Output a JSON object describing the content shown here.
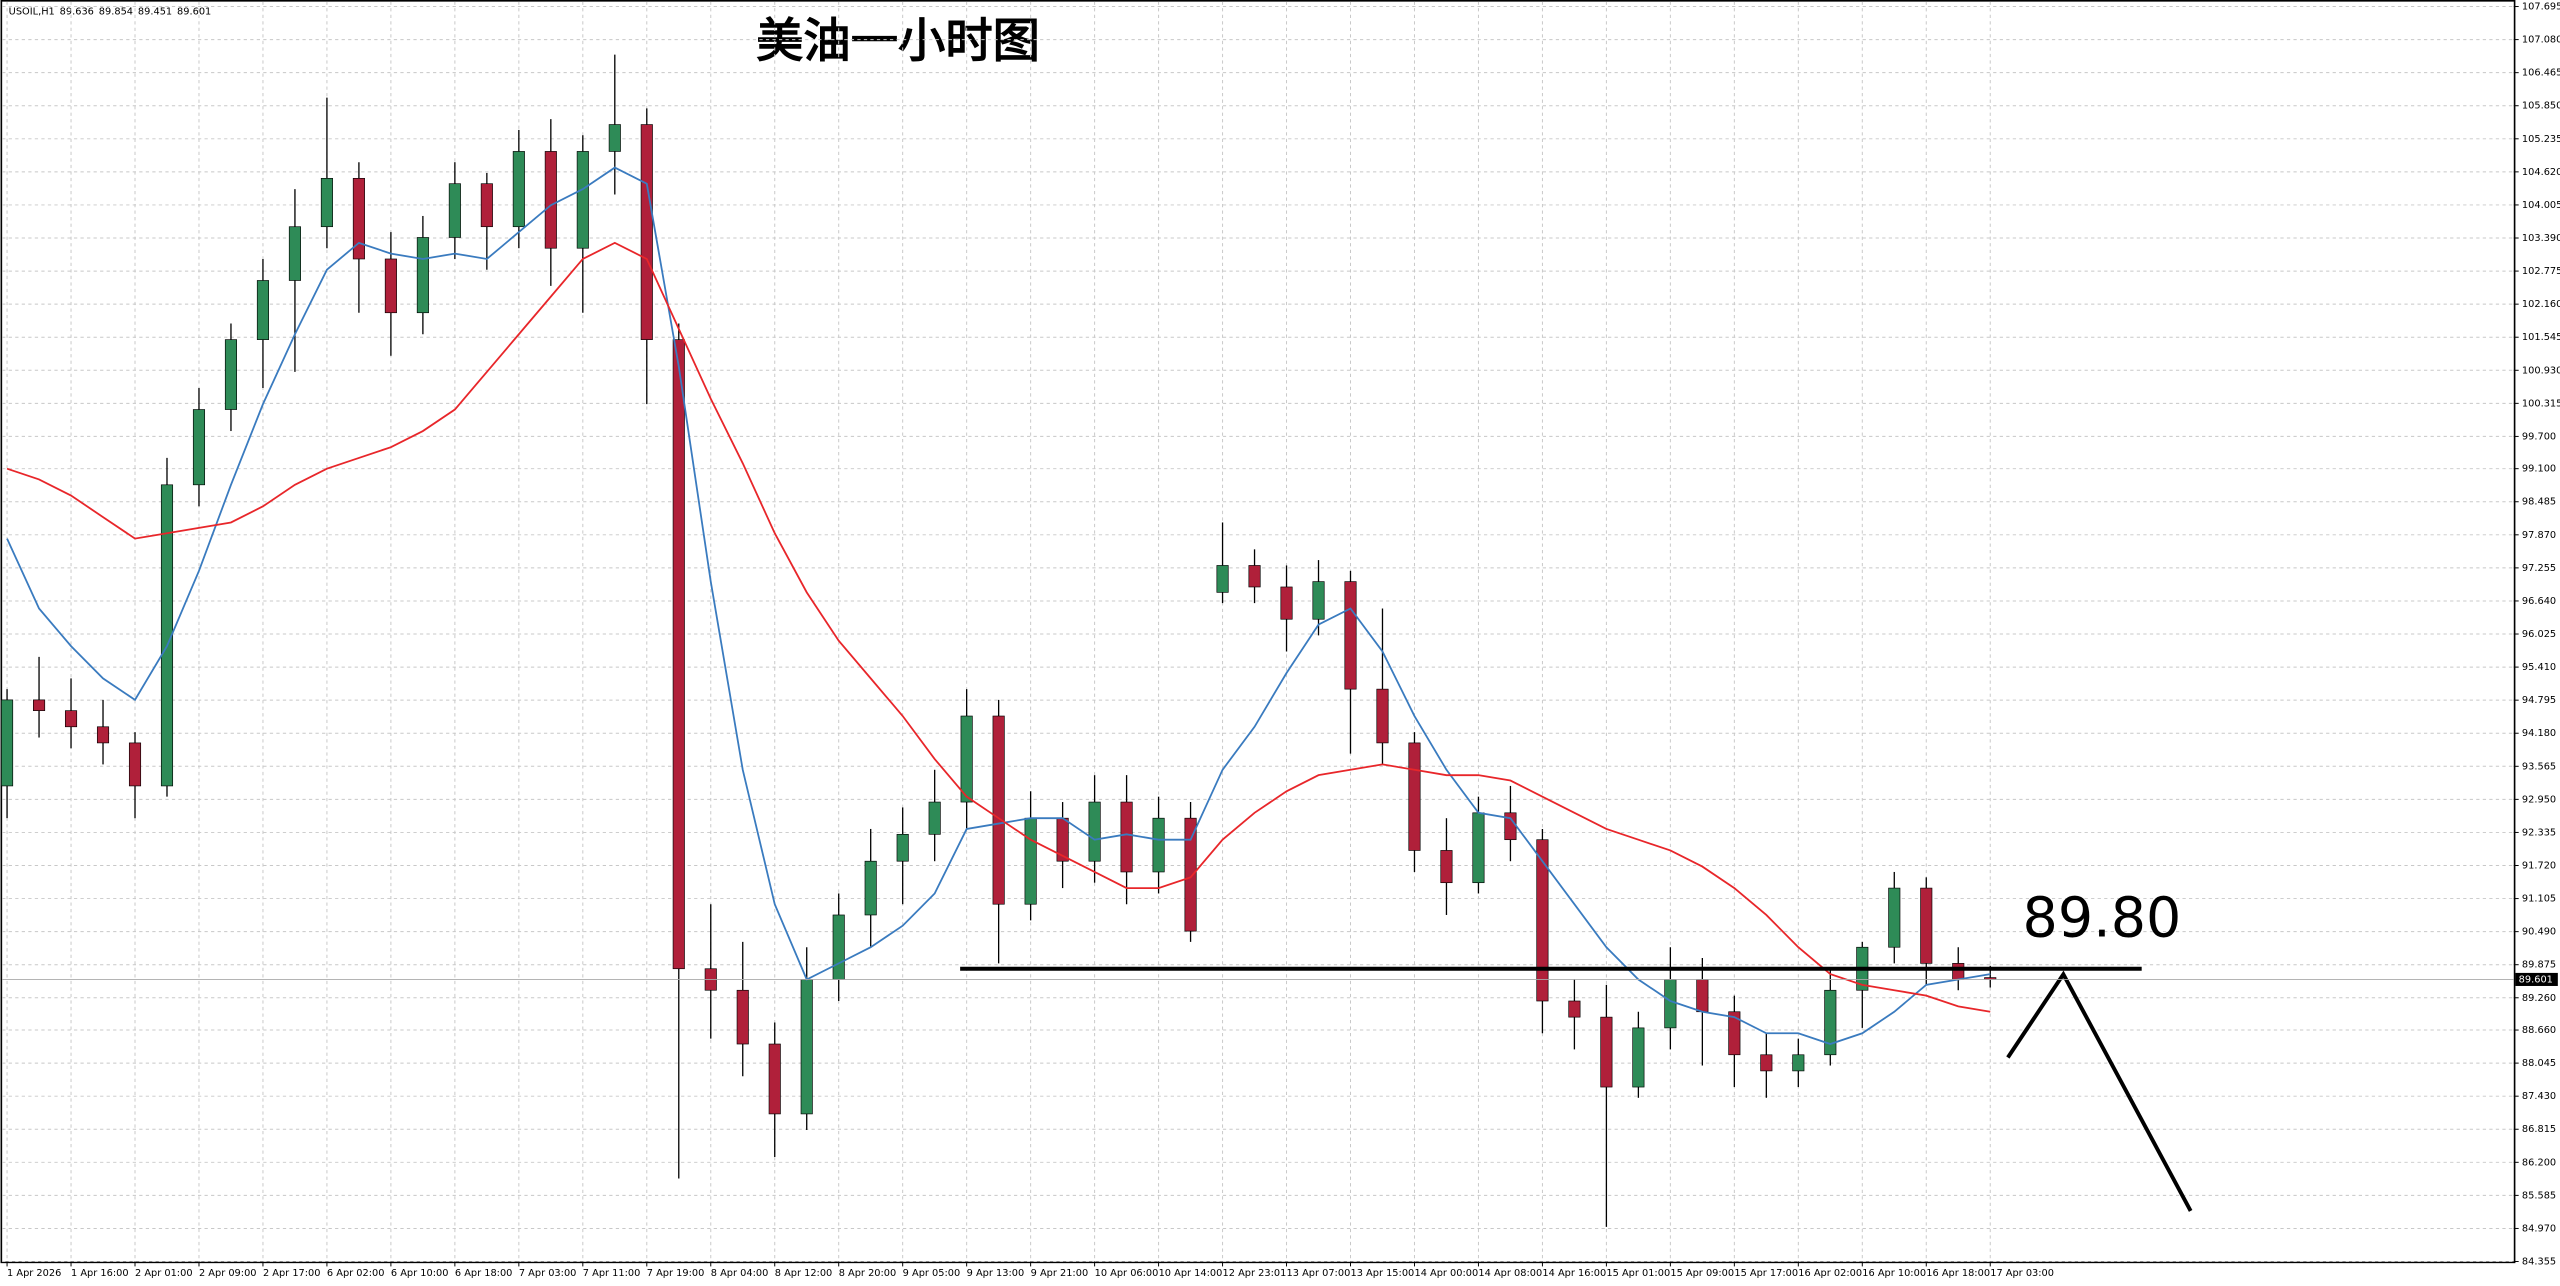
{
  "chart_data": {
    "type": "candlestick",
    "header": "USOIL,H1",
    "header_values": [
      89.636,
      89.854,
      89.451,
      89.601
    ],
    "title": "美油一小时图",
    "categories": [
      "1 Apr 2026",
      null,
      "1 Apr 16:00",
      null,
      "2 Apr 01:00",
      null,
      "2 Apr 09:00",
      null,
      "2 Apr 17:00",
      null,
      "6 Apr 02:00",
      null,
      "6 Apr 10:00",
      null,
      "6 Apr 18:00",
      null,
      "7 Apr 03:00",
      null,
      "7 Apr 11:00",
      null,
      "7 Apr 19:00",
      null,
      "8 Apr 04:00",
      null,
      "8 Apr 12:00",
      null,
      "8 Apr 20:00",
      null,
      "9 Apr 05:00",
      null,
      "9 Apr 13:00",
      null,
      "9 Apr 21:00",
      null,
      "10 Apr 06:00",
      null,
      "10 Apr 14:00",
      null,
      "12 Apr 23:01",
      null,
      "13 Apr 07:00",
      null,
      "13 Apr 15:00",
      null,
      "14 Apr 00:00",
      null,
      "14 Apr 08:00",
      null,
      "14 Apr 16:00",
      null,
      "15 Apr 01:00",
      null,
      "15 Apr 09:00",
      null,
      "15 Apr 17:00",
      null,
      "16 Apr 02:00",
      null,
      "16 Apr 10:00",
      null,
      "16 Apr 18:00",
      null,
      "17 Apr 03:00"
    ],
    "open": [
      93.2,
      94.8,
      94.6,
      94.3,
      94.0,
      93.2,
      98.8,
      100.2,
      101.5,
      102.6,
      103.6,
      104.5,
      103.0,
      102.0,
      103.4,
      104.4,
      103.6,
      105.0,
      103.2,
      105.0,
      105.5,
      101.5,
      89.8,
      89.4,
      88.4,
      87.1,
      89.6,
      90.8,
      91.8,
      92.3,
      92.9,
      94.5,
      91.0,
      92.6,
      91.8,
      92.9,
      91.6,
      92.6,
      96.8,
      97.3,
      96.9,
      96.3,
      97.0,
      95.0,
      94.0,
      92.0,
      91.4,
      92.7,
      92.2,
      89.2,
      88.9,
      87.6,
      88.7,
      89.6,
      89.0,
      88.2,
      87.9,
      88.2,
      89.4,
      90.2,
      91.3,
      89.9,
      89.636
    ],
    "high": [
      95.0,
      95.6,
      95.2,
      94.8,
      94.2,
      99.3,
      100.6,
      101.8,
      103.0,
      104.3,
      106.0,
      104.8,
      103.5,
      103.8,
      104.8,
      104.6,
      105.4,
      105.6,
      105.3,
      106.8,
      105.8,
      101.8,
      91.0,
      90.3,
      88.8,
      90.2,
      91.2,
      92.4,
      92.8,
      93.5,
      95.0,
      94.8,
      93.1,
      92.9,
      93.4,
      93.4,
      93.0,
      92.9,
      98.1,
      97.6,
      97.3,
      97.4,
      97.2,
      96.5,
      94.2,
      92.6,
      93.0,
      93.2,
      92.4,
      89.6,
      89.5,
      89.0,
      90.2,
      90.0,
      89.3,
      88.6,
      88.5,
      89.8,
      90.3,
      91.6,
      91.5,
      90.2,
      89.854
    ],
    "low": [
      92.6,
      94.1,
      93.9,
      93.6,
      92.6,
      93.0,
      98.4,
      99.8,
      100.6,
      100.9,
      103.2,
      102.0,
      101.2,
      101.6,
      103.0,
      102.8,
      103.2,
      102.5,
      102.0,
      104.2,
      100.3,
      85.9,
      88.5,
      87.8,
      86.3,
      86.8,
      89.2,
      90.2,
      91.0,
      91.8,
      92.4,
      89.9,
      90.7,
      91.3,
      91.4,
      91.0,
      91.2,
      90.3,
      96.6,
      96.6,
      95.7,
      96.0,
      93.8,
      93.6,
      91.6,
      90.8,
      91.2,
      91.8,
      88.6,
      88.3,
      85.0,
      87.4,
      88.3,
      88.0,
      87.6,
      87.4,
      87.6,
      88.0,
      88.7,
      89.9,
      89.5,
      89.4,
      89.451
    ],
    "close": [
      94.8,
      94.6,
      94.3,
      94.0,
      93.2,
      98.8,
      100.2,
      101.5,
      102.6,
      103.6,
      104.5,
      103.0,
      102.0,
      103.4,
      104.4,
      103.6,
      105.0,
      103.2,
      105.0,
      105.5,
      101.5,
      89.8,
      89.4,
      88.4,
      87.1,
      89.6,
      90.8,
      91.8,
      92.3,
      92.9,
      94.5,
      91.0,
      92.6,
      91.8,
      92.9,
      91.6,
      92.6,
      90.5,
      97.3,
      96.9,
      96.3,
      97.0,
      95.0,
      94.0,
      92.0,
      91.4,
      92.7,
      92.2,
      89.2,
      88.9,
      87.6,
      88.7,
      89.6,
      89.0,
      88.2,
      87.9,
      88.2,
      89.4,
      90.2,
      91.3,
      89.9,
      89.6,
      89.601
    ],
    "up_color": "#2e8b57",
    "down_color": "#b0203a",
    "lines": [
      {
        "color": "#3a7bbf",
        "values": [
          97.8,
          96.5,
          95.8,
          95.2,
          94.8,
          95.8,
          97.2,
          98.8,
          100.3,
          101.6,
          102.8,
          103.3,
          103.1,
          103.0,
          103.1,
          103.0,
          103.5,
          104.0,
          104.3,
          104.7,
          104.4,
          101.0,
          97.0,
          93.5,
          91.0,
          89.6,
          89.9,
          90.2,
          90.6,
          91.2,
          92.4,
          92.5,
          92.6,
          92.6,
          92.2,
          92.3,
          92.2,
          92.2,
          93.5,
          94.3,
          95.3,
          96.2,
          96.5,
          95.7,
          94.5,
          93.5,
          92.7,
          92.6,
          91.8,
          91.0,
          90.2,
          89.6,
          89.2,
          89.0,
          88.9,
          88.6,
          88.6,
          88.4,
          88.6,
          89.0,
          89.5,
          89.6,
          89.7
        ]
      },
      {
        "color": "#e8262a",
        "values": [
          99.1,
          98.9,
          98.6,
          98.2,
          97.8,
          97.9,
          98.0,
          98.1,
          98.4,
          98.8,
          99.1,
          99.3,
          99.5,
          99.8,
          100.2,
          100.9,
          101.6,
          102.3,
          103.0,
          103.3,
          103.0,
          101.7,
          100.4,
          99.2,
          97.9,
          96.8,
          95.9,
          95.2,
          94.5,
          93.7,
          93.0,
          92.6,
          92.2,
          91.9,
          91.6,
          91.3,
          91.3,
          91.5,
          92.2,
          92.7,
          93.1,
          93.4,
          93.5,
          93.6,
          93.5,
          93.4,
          93.4,
          93.3,
          93.0,
          92.7,
          92.4,
          92.2,
          92.0,
          91.7,
          91.3,
          90.8,
          90.2,
          89.7,
          89.5,
          89.4,
          89.3,
          89.1,
          89.0
        ]
      }
    ],
    "ylim": [
      84.355,
      107.695
    ],
    "yticks": [
      107.695,
      {
        "value": 107.08,
        "label": "107.080"
      },
      106.465,
      {
        "value": 105.85,
        "label": "105.850"
      },
      105.235,
      {
        "value": 104.62,
        "label": "104.620"
      },
      104.005,
      {
        "value": 103.39,
        "label": "103.390"
      },
      102.775,
      {
        "value": 102.16,
        "label": "102.160"
      },
      101.545,
      {
        "value": 100.93,
        "label": "100.930"
      },
      100.315,
      {
        "value": 99.7,
        "label": "99.700"
      },
      {
        "value": 99.1,
        "label": "99.100"
      },
      98.485,
      {
        "value": 97.87,
        "label": "97.870"
      },
      97.255,
      {
        "value": 96.64,
        "label": "96.640"
      },
      96.025,
      {
        "value": 95.41,
        "label": "95.410"
      },
      94.795,
      {
        "value": 94.18,
        "label": "94.180"
      },
      93.565,
      {
        "value": 92.95,
        "label": "92.950"
      },
      92.335,
      {
        "value": 91.72,
        "label": "91.720"
      },
      91.105,
      {
        "value": 90.49,
        "label": "90.490"
      },
      89.875,
      {
        "value": 89.26,
        "label": "89.260"
      },
      {
        "value": 88.66,
        "label": "88.660"
      },
      88.045,
      {
        "value": 87.43,
        "label": "87.430"
      },
      86.815,
      {
        "value": 86.2,
        "label": "86.200"
      },
      85.585,
      {
        "value": 84.97,
        "label": "84.970"
      },
      84.355
    ],
    "current_price": 89.601,
    "level": {
      "value": 89.8,
      "label": "89.80"
    },
    "grid": true
  }
}
